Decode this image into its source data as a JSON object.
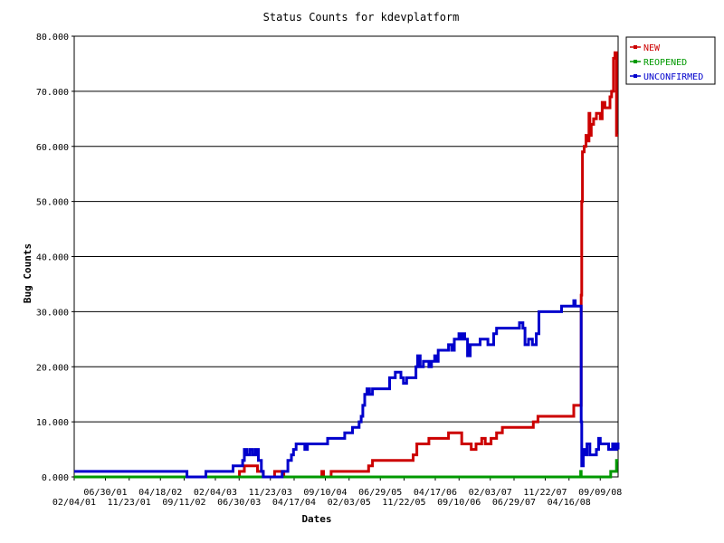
{
  "chart_data": {
    "type": "line",
    "title": "Status Counts for kdevplatform",
    "xlabel": "Dates",
    "ylabel": "Bug Counts",
    "x_range": [
      "2001-02-04",
      "2009-02-14"
    ],
    "ylim": [
      0,
      80
    ],
    "y_ticks": [
      "0.000",
      "10.000",
      "20.000",
      "30.000",
      "40.000",
      "50.000",
      "60.000",
      "70.000",
      "80.000"
    ],
    "x_ticks_upper": [
      "06/30/01",
      "04/18/02",
      "02/04/03",
      "11/23/03",
      "09/10/04",
      "06/29/05",
      "04/17/06",
      "02/03/07",
      "11/22/07",
      "09/09/08"
    ],
    "x_ticks_lower": [
      "02/04/01",
      "11/23/01",
      "09/11/02",
      "06/30/03",
      "04/17/04",
      "02/03/05",
      "11/22/05",
      "09/10/06",
      "06/29/07",
      "04/16/08"
    ],
    "grid": "horizontal",
    "legend_position": "right",
    "series": [
      {
        "name": "NEW",
        "color": "#cc0000",
        "points": [
          [
            "2003-06-01",
            0
          ],
          [
            "2003-07-15",
            1
          ],
          [
            "2003-08-10",
            2
          ],
          [
            "2003-10-20",
            1
          ],
          [
            "2003-11-20",
            0
          ],
          [
            "2004-01-20",
            1
          ],
          [
            "2004-03-10",
            0
          ],
          [
            "2004-10-01",
            1
          ],
          [
            "2004-10-10",
            0
          ],
          [
            "2004-11-20",
            1
          ],
          [
            "2005-06-10",
            2
          ],
          [
            "2005-07-01",
            3
          ],
          [
            "2006-01-10",
            3
          ],
          [
            "2006-02-05",
            4
          ],
          [
            "2006-02-25",
            6
          ],
          [
            "2006-04-10",
            6
          ],
          [
            "2006-05-01",
            7
          ],
          [
            "2006-08-01",
            7
          ],
          [
            "2006-08-15",
            8
          ],
          [
            "2006-10-10",
            8
          ],
          [
            "2006-10-25",
            6
          ],
          [
            "2006-12-01",
            6
          ],
          [
            "2006-12-15",
            5
          ],
          [
            "2007-01-10",
            6
          ],
          [
            "2007-02-10",
            7
          ],
          [
            "2007-03-01",
            6
          ],
          [
            "2007-04-01",
            7
          ],
          [
            "2007-05-01",
            8
          ],
          [
            "2007-06-01",
            9
          ],
          [
            "2007-11-01",
            9
          ],
          [
            "2007-11-15",
            10
          ],
          [
            "2007-12-10",
            11
          ],
          [
            "2008-06-10",
            11
          ],
          [
            "2008-06-20",
            13
          ],
          [
            "2008-07-25",
            13
          ],
          [
            "2008-07-30",
            33
          ],
          [
            "2008-08-02",
            50
          ],
          [
            "2008-08-06",
            59
          ],
          [
            "2008-08-15",
            60
          ],
          [
            "2008-08-25",
            62
          ],
          [
            "2008-09-05",
            61
          ],
          [
            "2008-09-10",
            66
          ],
          [
            "2008-09-15",
            62
          ],
          [
            "2008-09-22",
            64
          ],
          [
            "2008-10-05",
            65
          ],
          [
            "2008-10-20",
            66
          ],
          [
            "2008-11-10",
            65
          ],
          [
            "2008-11-20",
            68
          ],
          [
            "2008-12-05",
            67
          ],
          [
            "2008-12-20",
            67
          ],
          [
            "2009-01-01",
            69
          ],
          [
            "2009-01-10",
            70
          ],
          [
            "2009-01-20",
            76
          ],
          [
            "2009-01-28",
            77
          ],
          [
            "2009-02-05",
            62
          ],
          [
            "2009-02-14",
            62
          ]
        ]
      },
      {
        "name": "REOPENED",
        "color": "#009900",
        "points": [
          [
            "2001-02-04",
            0
          ],
          [
            "2008-07-25",
            0
          ],
          [
            "2008-07-27",
            1
          ],
          [
            "2008-07-30",
            0
          ],
          [
            "2008-12-20",
            0
          ],
          [
            "2009-01-05",
            1
          ],
          [
            "2009-02-01",
            1
          ],
          [
            "2009-02-05",
            3
          ],
          [
            "2009-02-14",
            3
          ]
        ]
      },
      {
        "name": "UNCONFIRMED",
        "color": "#0000cc",
        "points": [
          [
            "2001-02-04",
            1
          ],
          [
            "2002-10-01",
            1
          ],
          [
            "2002-10-05",
            0
          ],
          [
            "2003-01-10",
            0
          ],
          [
            "2003-01-15",
            1
          ],
          [
            "2003-06-01",
            1
          ],
          [
            "2003-06-10",
            2
          ],
          [
            "2003-07-20",
            2
          ],
          [
            "2003-08-01",
            3
          ],
          [
            "2003-08-10",
            5
          ],
          [
            "2003-08-25",
            4
          ],
          [
            "2003-09-10",
            5
          ],
          [
            "2003-09-25",
            4
          ],
          [
            "2003-10-10",
            5
          ],
          [
            "2003-10-25",
            3
          ],
          [
            "2003-11-10",
            1
          ],
          [
            "2003-11-20",
            0
          ],
          [
            "2004-02-20",
            0
          ],
          [
            "2004-03-01",
            1
          ],
          [
            "2004-04-01",
            3
          ],
          [
            "2004-04-20",
            4
          ],
          [
            "2004-05-01",
            5
          ],
          [
            "2004-05-15",
            6
          ],
          [
            "2004-06-01",
            6
          ],
          [
            "2004-07-01",
            5
          ],
          [
            "2004-07-15",
            6
          ],
          [
            "2004-11-01",
            7
          ],
          [
            "2005-02-01",
            8
          ],
          [
            "2005-03-15",
            9
          ],
          [
            "2005-04-20",
            10
          ],
          [
            "2005-05-01",
            11
          ],
          [
            "2005-05-10",
            13
          ],
          [
            "2005-05-20",
            15
          ],
          [
            "2005-06-01",
            16
          ],
          [
            "2005-06-15",
            15
          ],
          [
            "2005-07-01",
            16
          ],
          [
            "2005-09-20",
            16
          ],
          [
            "2005-10-01",
            18
          ],
          [
            "2005-11-01",
            19
          ],
          [
            "2005-12-01",
            18
          ],
          [
            "2005-12-15",
            17
          ],
          [
            "2006-01-01",
            18
          ],
          [
            "2006-02-20",
            20
          ],
          [
            "2006-03-01",
            22
          ],
          [
            "2006-03-15",
            20
          ],
          [
            "2006-04-01",
            21
          ],
          [
            "2006-04-20",
            21
          ],
          [
            "2006-05-01",
            20
          ],
          [
            "2006-05-15",
            21
          ],
          [
            "2006-06-01",
            22
          ],
          [
            "2006-06-10",
            21
          ],
          [
            "2006-06-20",
            23
          ],
          [
            "2006-08-01",
            23
          ],
          [
            "2006-08-15",
            24
          ],
          [
            "2006-09-01",
            23
          ],
          [
            "2006-09-15",
            25
          ],
          [
            "2006-10-01",
            25
          ],
          [
            "2006-10-10",
            26
          ],
          [
            "2006-10-20",
            25
          ],
          [
            "2006-11-01",
            26
          ],
          [
            "2006-11-10",
            25
          ],
          [
            "2006-11-25",
            22
          ],
          [
            "2006-12-10",
            24
          ],
          [
            "2007-02-01",
            25
          ],
          [
            "2007-03-15",
            24
          ],
          [
            "2007-04-15",
            26
          ],
          [
            "2007-05-01",
            27
          ],
          [
            "2007-08-15",
            27
          ],
          [
            "2007-09-01",
            28
          ],
          [
            "2007-09-20",
            27
          ],
          [
            "2007-10-01",
            24
          ],
          [
            "2007-10-20",
            25
          ],
          [
            "2007-11-10",
            24
          ],
          [
            "2007-12-01",
            26
          ],
          [
            "2007-12-15",
            30
          ],
          [
            "2008-04-01",
            30
          ],
          [
            "2008-04-15",
            31
          ],
          [
            "2008-06-15",
            31
          ],
          [
            "2008-06-20",
            32
          ],
          [
            "2008-06-28",
            31
          ],
          [
            "2008-07-25",
            31
          ],
          [
            "2008-07-30",
            10
          ],
          [
            "2008-08-02",
            2
          ],
          [
            "2008-08-10",
            5
          ],
          [
            "2008-08-20",
            4
          ],
          [
            "2008-08-30",
            6
          ],
          [
            "2008-09-15",
            4
          ],
          [
            "2008-10-01",
            4
          ],
          [
            "2008-10-20",
            5
          ],
          [
            "2008-11-01",
            7
          ],
          [
            "2008-11-10",
            6
          ],
          [
            "2008-12-10",
            6
          ],
          [
            "2008-12-25",
            5
          ],
          [
            "2009-01-15",
            6
          ],
          [
            "2009-01-25",
            5
          ],
          [
            "2009-02-05",
            6
          ],
          [
            "2009-02-14",
            5
          ]
        ]
      }
    ]
  }
}
